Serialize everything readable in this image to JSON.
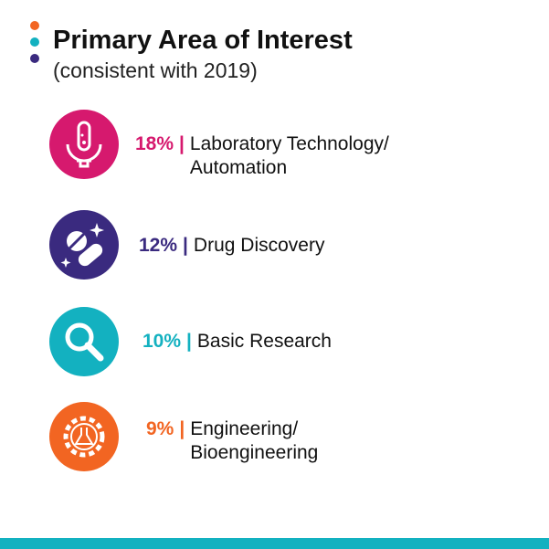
{
  "header": {
    "title": "Primary Area of Interest",
    "subtitle": "(consistent with 2019)"
  },
  "items": [
    {
      "percent": "18%",
      "separator": "|",
      "label_lines": [
        "Laboratory Technology/",
        "Automation"
      ],
      "color": "#d6196e"
    },
    {
      "percent": "12%",
      "separator": "|",
      "label_lines": [
        "Drug Discovery"
      ],
      "color": "#3a2a7f"
    },
    {
      "percent": "10%",
      "separator": "|",
      "label_lines": [
        "Basic Research"
      ],
      "color": "#13b1c0"
    },
    {
      "percent": "9%",
      "separator": "|",
      "label_lines": [
        "Engineering/",
        "Bioengineering"
      ],
      "color": "#f26522"
    }
  ]
}
